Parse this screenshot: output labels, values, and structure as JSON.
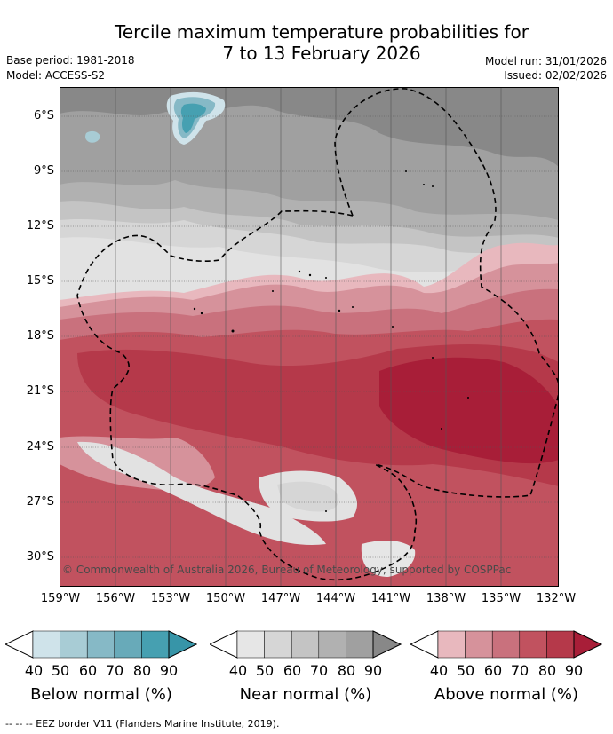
{
  "title": {
    "line1": "Tercile maximum temperature probabilities for",
    "line2": "7 to 13 February 2026"
  },
  "meta": {
    "base_period": "Base period: 1981-2018",
    "model": "Model: ACCESS-S2",
    "model_run": "Model run: 31/01/2026",
    "issued": "Issued: 02/02/2026"
  },
  "axes": {
    "lat_labels": [
      "6°S",
      "9°S",
      "12°S",
      "15°S",
      "18°S",
      "21°S",
      "24°S",
      "27°S",
      "30°S"
    ],
    "lon_labels": [
      "159°W",
      "156°W",
      "153°W",
      "150°W",
      "147°W",
      "144°W",
      "141°W",
      "138°W",
      "135°W",
      "132°W"
    ]
  },
  "copyright": "© Commonwealth of Australia 2026, Bureau of Meteorology, supported by COSPPac",
  "legend": {
    "below": {
      "label": "Below normal (%)",
      "ticks": [
        "40",
        "50",
        "60",
        "70",
        "80",
        "90"
      ],
      "colors": [
        "#cfe3ea",
        "#a8ccd5",
        "#86b9c6",
        "#68aab9",
        "#46a0b1"
      ],
      "tip": "#3795a8"
    },
    "near": {
      "label": "Near normal (%)",
      "ticks": [
        "40",
        "50",
        "60",
        "70",
        "80",
        "90"
      ],
      "colors": [
        "#e6e6e6",
        "#d6d6d6",
        "#c4c4c4",
        "#b1b1b1",
        "#a0a0a0"
      ],
      "tip": "#888888"
    },
    "above": {
      "label": "Above normal (%)",
      "ticks": [
        "40",
        "50",
        "60",
        "70",
        "80",
        "90"
      ],
      "colors": [
        "#e8b8be",
        "#d6929b",
        "#c9717d",
        "#c1525f",
        "#b5394a"
      ],
      "tip": "#a81e38"
    }
  },
  "footer": "--  --  -- EEZ border V11 (Flanders Marine Institute, 2019)."
}
